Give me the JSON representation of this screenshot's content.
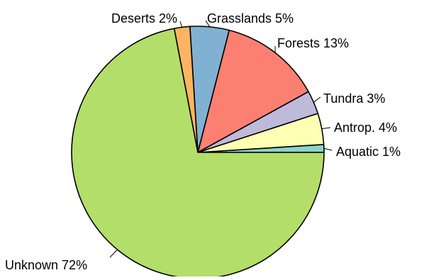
{
  "chart_data": {
    "type": "pie",
    "slices": [
      {
        "label": "Aquatic  1%",
        "value": 1,
        "color": "#8DD3C7"
      },
      {
        "label": "Antrop. 4%",
        "value": 4,
        "color": "#FFFFB3"
      },
      {
        "label": "Tundra 3%",
        "value": 3,
        "color": "#BEBADA"
      },
      {
        "label": "Forests 13%",
        "value": 13,
        "color": "#FB8072"
      },
      {
        "label": "Grasslands 5%",
        "value": 5,
        "color": "#80B1D3"
      },
      {
        "label": "Deserts 2%",
        "value": 2,
        "color": "#FDB462"
      },
      {
        "label": "Unknown 72%",
        "value": 72,
        "color": "#B3DE69"
      }
    ],
    "start": "3 o'clock",
    "direction": "counter-clockwise"
  }
}
